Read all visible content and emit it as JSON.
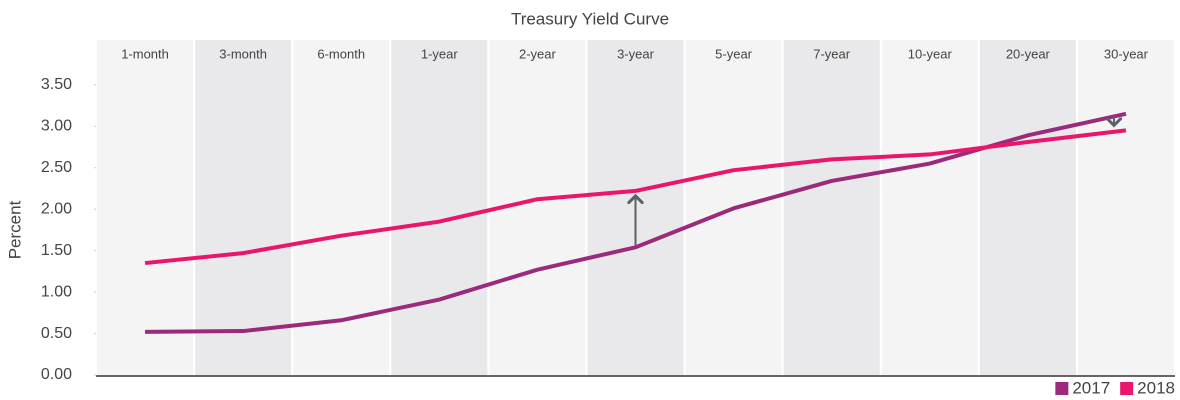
{
  "chart_data": {
    "type": "line",
    "title": "Treasury Yield Curve",
    "y_label": "Percent",
    "categories": [
      "1-month",
      "3-month",
      "6-month",
      "1-year",
      "2-year",
      "3-year",
      "5-year",
      "7-year",
      "10-year",
      "20-year",
      "30-year"
    ],
    "series": [
      {
        "name": "2017",
        "color": "#9b2a7a",
        "values": [
          0.52,
          0.53,
          0.66,
          0.91,
          1.27,
          1.54,
          2.01,
          2.34,
          2.55,
          2.89,
          3.15
        ]
      },
      {
        "name": "2018",
        "color": "#e8176b",
        "values": [
          1.35,
          1.47,
          1.68,
          1.85,
          2.12,
          2.22,
          2.47,
          2.6,
          2.66,
          2.81,
          2.95
        ]
      }
    ],
    "ylim": [
      0,
      4.04
    ],
    "yticks": [
      {
        "value": 0,
        "label": "0.00"
      },
      {
        "value": 0.5,
        "label": "0.50"
      },
      {
        "value": 1,
        "label": "1.00"
      },
      {
        "value": 1.5,
        "label": "1.50"
      },
      {
        "value": 2,
        "label": "2.00"
      },
      {
        "value": 2.5,
        "label": "2.50"
      },
      {
        "value": 3,
        "label": "3.00"
      },
      {
        "value": 3.5,
        "label": "3.50"
      }
    ],
    "legend": "bottom-right"
  }
}
